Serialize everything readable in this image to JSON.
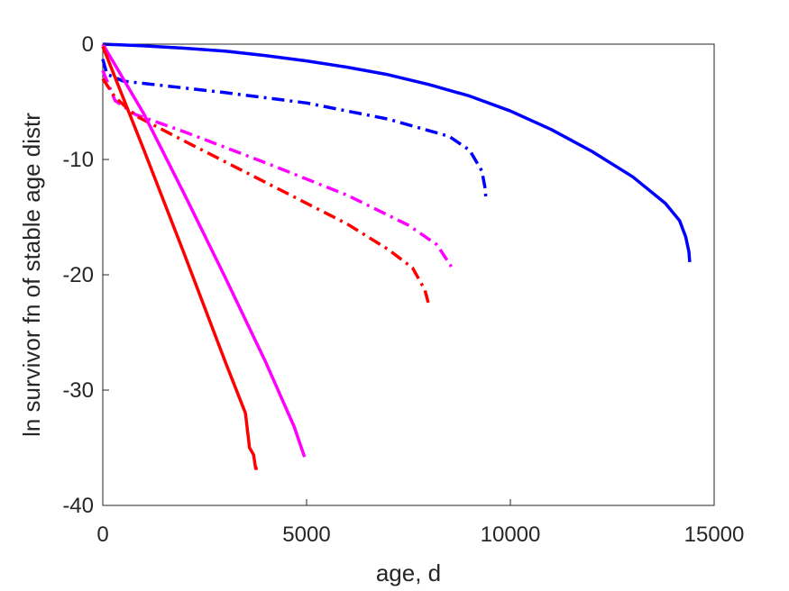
{
  "chart_data": {
    "type": "line",
    "xlabel": "age, d",
    "ylabel": "ln survivor fn of stable age distr",
    "xlim": [
      0,
      15000
    ],
    "ylim": [
      -40,
      0
    ],
    "xticks": [
      0,
      5000,
      10000,
      15000
    ],
    "yticks": [
      0,
      -10,
      -20,
      -30,
      -40
    ],
    "xtick_labels": [
      "0",
      "5000",
      "10000",
      "15000"
    ],
    "ytick_labels": [
      "0",
      "-10",
      "-20",
      "-30",
      "-40"
    ],
    "grid": false,
    "series": [
      {
        "color": "#0000ff",
        "style": "solid",
        "points": [
          [
            0,
            0
          ],
          [
            1000,
            -0.15
          ],
          [
            2000,
            -0.35
          ],
          [
            3000,
            -0.6
          ],
          [
            4000,
            -1.0
          ],
          [
            5000,
            -1.45
          ],
          [
            6000,
            -2.0
          ],
          [
            7000,
            -2.65
          ],
          [
            8000,
            -3.5
          ],
          [
            9000,
            -4.5
          ],
          [
            10000,
            -5.8
          ],
          [
            11000,
            -7.4
          ],
          [
            12000,
            -9.3
          ],
          [
            13000,
            -11.5
          ],
          [
            13800,
            -13.8
          ],
          [
            14150,
            -15.3
          ],
          [
            14300,
            -16.7
          ],
          [
            14380,
            -18.0
          ],
          [
            14400,
            -18.9
          ]
        ]
      },
      {
        "color": "#0000ff",
        "style": "dashdot",
        "points": [
          [
            0,
            -1.3
          ],
          [
            100,
            -2.6
          ],
          [
            500,
            -3.2
          ],
          [
            1500,
            -3.6
          ],
          [
            3000,
            -4.2
          ],
          [
            5000,
            -5.1
          ],
          [
            7000,
            -6.5
          ],
          [
            8500,
            -8.0
          ],
          [
            9000,
            -9.2
          ],
          [
            9300,
            -11.0
          ],
          [
            9380,
            -12.5
          ],
          [
            9400,
            -13.4
          ]
        ]
      },
      {
        "color": "#ff00ff",
        "style": "dashdot",
        "points": [
          [
            0,
            -2.3
          ],
          [
            300,
            -4.9
          ],
          [
            800,
            -6.1
          ],
          [
            2000,
            -7.6
          ],
          [
            4000,
            -10.3
          ],
          [
            6000,
            -13.1
          ],
          [
            7500,
            -15.7
          ],
          [
            8200,
            -17.4
          ],
          [
            8550,
            -19.3
          ]
        ]
      },
      {
        "color": "#ff0000",
        "style": "dashdot",
        "points": [
          [
            0,
            -3.0
          ],
          [
            300,
            -4.6
          ],
          [
            800,
            -6.2
          ],
          [
            2000,
            -8.4
          ],
          [
            4000,
            -12.0
          ],
          [
            6000,
            -15.6
          ],
          [
            7000,
            -17.8
          ],
          [
            7600,
            -19.4
          ],
          [
            7900,
            -21.3
          ],
          [
            8000,
            -22.6
          ]
        ]
      },
      {
        "color": "#ff00ff",
        "style": "solid",
        "points": [
          [
            0,
            0
          ],
          [
            1000,
            -6.0
          ],
          [
            2000,
            -13.0
          ],
          [
            3000,
            -20.2
          ],
          [
            4000,
            -27.6
          ],
          [
            4700,
            -33.2
          ],
          [
            4900,
            -35.3
          ],
          [
            4950,
            -35.8
          ]
        ]
      },
      {
        "color": "#ff0000",
        "style": "solid",
        "points": [
          [
            0,
            -0.2
          ],
          [
            1000,
            -9.1
          ],
          [
            2000,
            -18.2
          ],
          [
            3000,
            -27.5
          ],
          [
            3500,
            -32.0
          ],
          [
            3600,
            -35.0
          ],
          [
            3700,
            -35.6
          ],
          [
            3750,
            -36.8
          ],
          [
            3800,
            -36.8
          ]
        ]
      }
    ]
  }
}
